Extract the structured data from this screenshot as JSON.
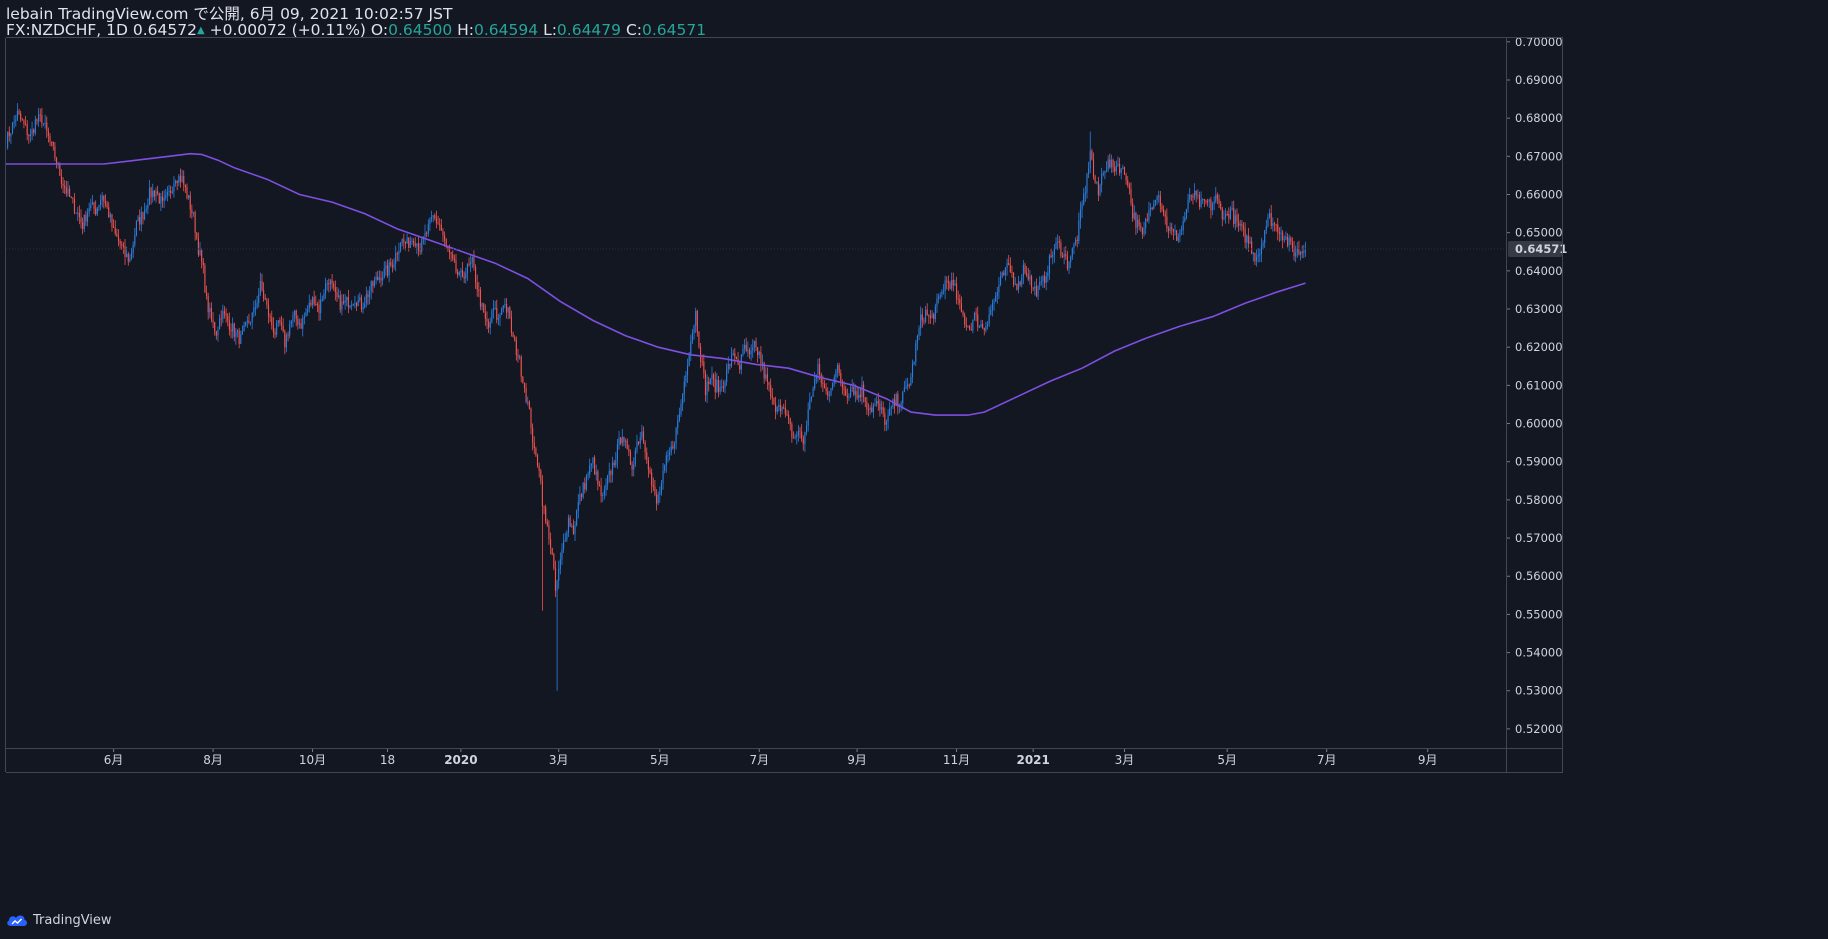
{
  "header": {
    "publisher_line": "lebain TradingView.com で公開, 6月 09, 2021 10:02:57 JST",
    "symbol": "FX:NZDCHF, 1D",
    "last": "0.64572",
    "change": "+0.00072 (+0.11%)",
    "o_label": "O:",
    "o_value": "0.64500",
    "h_label": "H:",
    "h_value": "0.64594",
    "l_label": "L:",
    "l_value": "0.64479",
    "c_label": "C:",
    "c_value": "0.64571"
  },
  "brand": {
    "name": "TradingView",
    "icon": "tradingview-cloud-icon"
  },
  "colors": {
    "background": "#131722",
    "up": "#2a7fe0",
    "down": "#ef5350",
    "ma": "#7e4fe0",
    "text": "#d1d4dc"
  },
  "chart_data": {
    "type": "candlestick",
    "symbol": "FX:NZDCHF",
    "interval": "1D",
    "ylim": [
      0.515,
      0.701
    ],
    "y_ticks": [
      "0.70000",
      "0.69000",
      "0.68000",
      "0.67000",
      "0.66000",
      "0.65000",
      "0.64000",
      "0.63000",
      "0.62000",
      "0.61000",
      "0.60000",
      "0.59000",
      "0.58000",
      "0.57000",
      "0.56000",
      "0.55000",
      "0.54000",
      "0.53000",
      "0.52000"
    ],
    "current_price_label": "0.64571",
    "current_price": 0.64571,
    "x_labels": [
      "6月",
      "8月",
      "10月",
      "18",
      "2020",
      "3月",
      "5月",
      "7月",
      "9月",
      "11月",
      "2021",
      "3月",
      "5月",
      "7月",
      "9月"
    ],
    "x_label_days": [
      66,
      127,
      188,
      234,
      279,
      339,
      401,
      462,
      522,
      583,
      630,
      686,
      749,
      810,
      872
    ],
    "price_day_range": [
      0,
      797
    ],
    "axis_day_range": [
      0,
      920
    ],
    "price_path": [
      [
        0,
        0.674
      ],
      [
        3,
        0.677
      ],
      [
        7,
        0.681
      ],
      [
        11,
        0.678
      ],
      [
        15,
        0.675
      ],
      [
        18,
        0.679
      ],
      [
        22,
        0.68
      ],
      [
        25,
        0.676
      ],
      [
        30,
        0.67
      ],
      [
        34,
        0.664
      ],
      [
        38,
        0.66
      ],
      [
        43,
        0.656
      ],
      [
        47,
        0.652
      ],
      [
        51,
        0.657
      ],
      [
        55,
        0.656
      ],
      [
        59,
        0.66
      ],
      [
        63,
        0.655
      ],
      [
        66,
        0.65
      ],
      [
        70,
        0.647
      ],
      [
        73,
        0.644
      ],
      [
        76,
        0.643
      ],
      [
        80,
        0.652
      ],
      [
        84,
        0.655
      ],
      [
        88,
        0.66
      ],
      [
        92,
        0.661
      ],
      [
        96,
        0.657
      ],
      [
        100,
        0.66
      ],
      [
        104,
        0.665
      ],
      [
        108,
        0.664
      ],
      [
        111,
        0.66
      ],
      [
        115,
        0.654
      ],
      [
        118,
        0.646
      ],
      [
        121,
        0.64
      ],
      [
        123,
        0.632
      ],
      [
        126,
        0.627
      ],
      [
        129,
        0.624
      ],
      [
        132,
        0.629
      ],
      [
        136,
        0.627
      ],
      [
        140,
        0.624
      ],
      [
        144,
        0.622
      ],
      [
        148,
        0.626
      ],
      [
        152,
        0.629
      ],
      [
        156,
        0.636
      ],
      [
        159,
        0.632
      ],
      [
        162,
        0.627
      ],
      [
        165,
        0.624
      ],
      [
        168,
        0.626
      ],
      [
        171,
        0.621
      ],
      [
        174,
        0.626
      ],
      [
        177,
        0.628
      ],
      [
        181,
        0.626
      ],
      [
        185,
        0.63
      ],
      [
        189,
        0.633
      ],
      [
        192,
        0.63
      ],
      [
        195,
        0.635
      ],
      [
        198,
        0.638
      ],
      [
        202,
        0.633
      ],
      [
        206,
        0.631
      ],
      [
        210,
        0.632
      ],
      [
        214,
        0.633
      ],
      [
        218,
        0.631
      ],
      [
        222,
        0.634
      ],
      [
        226,
        0.637
      ],
      [
        230,
        0.639
      ],
      [
        234,
        0.64
      ],
      [
        238,
        0.643
      ],
      [
        242,
        0.648
      ],
      [
        246,
        0.647
      ],
      [
        250,
        0.649
      ],
      [
        254,
        0.646
      ],
      [
        258,
        0.65
      ],
      [
        262,
        0.654
      ],
      [
        266,
        0.652
      ],
      [
        270,
        0.646
      ],
      [
        274,
        0.642
      ],
      [
        278,
        0.638
      ],
      [
        282,
        0.64
      ],
      [
        286,
        0.642
      ],
      [
        290,
        0.634
      ],
      [
        293,
        0.628
      ],
      [
        296,
        0.625
      ],
      [
        299,
        0.63
      ],
      [
        302,
        0.627
      ],
      [
        305,
        0.632
      ],
      [
        308,
        0.629
      ],
      [
        311,
        0.622
      ],
      [
        314,
        0.618
      ],
      [
        317,
        0.612
      ],
      [
        320,
        0.605
      ],
      [
        322,
        0.6
      ],
      [
        324,
        0.592
      ],
      [
        327,
        0.589
      ],
      [
        329,
        0.58
      ],
      [
        331,
        0.574
      ],
      [
        333,
        0.571
      ],
      [
        335,
        0.565
      ],
      [
        337,
        0.556
      ],
      [
        339,
        0.561
      ],
      [
        342,
        0.569
      ],
      [
        345,
        0.575
      ],
      [
        348,
        0.572
      ],
      [
        351,
        0.579
      ],
      [
        354,
        0.583
      ],
      [
        357,
        0.587
      ],
      [
        360,
        0.59
      ],
      [
        363,
        0.584
      ],
      [
        366,
        0.58
      ],
      [
        369,
        0.585
      ],
      [
        372,
        0.589
      ],
      [
        375,
        0.593
      ],
      [
        378,
        0.598
      ],
      [
        381,
        0.592
      ],
      [
        384,
        0.589
      ],
      [
        387,
        0.595
      ],
      [
        390,
        0.598
      ],
      [
        393,
        0.592
      ],
      [
        396,
        0.584
      ],
      [
        399,
        0.579
      ],
      [
        402,
        0.584
      ],
      [
        405,
        0.59
      ],
      [
        408,
        0.593
      ],
      [
        411,
        0.598
      ],
      [
        414,
        0.605
      ],
      [
        417,
        0.614
      ],
      [
        420,
        0.622
      ],
      [
        423,
        0.629
      ],
      [
        426,
        0.618
      ],
      [
        429,
        0.609
      ],
      [
        432,
        0.612
      ],
      [
        435,
        0.61
      ],
      [
        438,
        0.609
      ],
      [
        441,
        0.612
      ],
      [
        444,
        0.616
      ],
      [
        447,
        0.618
      ],
      [
        450,
        0.615
      ],
      [
        453,
        0.62
      ],
      [
        456,
        0.617
      ],
      [
        459,
        0.62
      ],
      [
        462,
        0.618
      ],
      [
        465,
        0.613
      ],
      [
        468,
        0.609
      ],
      [
        471,
        0.604
      ],
      [
        474,
        0.606
      ],
      [
        477,
        0.603
      ],
      [
        480,
        0.6
      ],
      [
        483,
        0.596
      ],
      [
        486,
        0.598
      ],
      [
        489,
        0.595
      ],
      [
        492,
        0.603
      ],
      [
        495,
        0.61
      ],
      [
        498,
        0.614
      ],
      [
        501,
        0.61
      ],
      [
        504,
        0.607
      ],
      [
        507,
        0.612
      ],
      [
        510,
        0.614
      ],
      [
        513,
        0.61
      ],
      [
        516,
        0.608
      ],
      [
        519,
        0.61
      ],
      [
        522,
        0.607
      ],
      [
        525,
        0.609
      ],
      [
        528,
        0.605
      ],
      [
        531,
        0.604
      ],
      [
        534,
        0.605
      ],
      [
        537,
        0.603
      ],
      [
        540,
        0.6
      ],
      [
        543,
        0.604
      ],
      [
        546,
        0.606
      ],
      [
        549,
        0.606
      ],
      [
        552,
        0.609
      ],
      [
        555,
        0.612
      ],
      [
        558,
        0.62
      ],
      [
        561,
        0.627
      ],
      [
        564,
        0.629
      ],
      [
        567,
        0.627
      ],
      [
        570,
        0.63
      ],
      [
        573,
        0.633
      ],
      [
        576,
        0.637
      ],
      [
        579,
        0.637
      ],
      [
        582,
        0.635
      ],
      [
        585,
        0.63
      ],
      [
        588,
        0.627
      ],
      [
        591,
        0.625
      ],
      [
        594,
        0.628
      ],
      [
        597,
        0.626
      ],
      [
        600,
        0.625
      ],
      [
        603,
        0.629
      ],
      [
        606,
        0.632
      ],
      [
        609,
        0.636
      ],
      [
        612,
        0.639
      ],
      [
        615,
        0.641
      ],
      [
        618,
        0.638
      ],
      [
        621,
        0.636
      ],
      [
        624,
        0.641
      ],
      [
        627,
        0.639
      ],
      [
        630,
        0.635
      ],
      [
        633,
        0.635
      ],
      [
        636,
        0.637
      ],
      [
        639,
        0.641
      ],
      [
        642,
        0.645
      ],
      [
        645,
        0.647
      ],
      [
        648,
        0.645
      ],
      [
        651,
        0.642
      ],
      [
        654,
        0.645
      ],
      [
        657,
        0.649
      ],
      [
        660,
        0.657
      ],
      [
        663,
        0.664
      ],
      [
        665,
        0.672
      ],
      [
        667,
        0.665
      ],
      [
        670,
        0.66
      ],
      [
        673,
        0.667
      ],
      [
        676,
        0.668
      ],
      [
        679,
        0.667
      ],
      [
        682,
        0.668
      ],
      [
        685,
        0.666
      ],
      [
        688,
        0.664
      ],
      [
        691,
        0.655
      ],
      [
        694,
        0.652
      ],
      [
        697,
        0.649
      ],
      [
        700,
        0.654
      ],
      [
        703,
        0.658
      ],
      [
        706,
        0.661
      ],
      [
        709,
        0.657
      ],
      [
        712,
        0.652
      ],
      [
        715,
        0.65
      ],
      [
        718,
        0.649
      ],
      [
        721,
        0.651
      ],
      [
        724,
        0.656
      ],
      [
        727,
        0.66
      ],
      [
        730,
        0.659
      ],
      [
        733,
        0.657
      ],
      [
        736,
        0.658
      ],
      [
        739,
        0.657
      ],
      [
        742,
        0.659
      ],
      [
        745,
        0.656
      ],
      [
        748,
        0.654
      ],
      [
        751,
        0.656
      ],
      [
        754,
        0.653
      ],
      [
        757,
        0.651
      ],
      [
        760,
        0.649
      ],
      [
        763,
        0.647
      ],
      [
        766,
        0.644
      ],
      [
        769,
        0.645
      ],
      [
        772,
        0.651
      ],
      [
        775,
        0.654
      ],
      [
        778,
        0.652
      ],
      [
        781,
        0.651
      ],
      [
        784,
        0.649
      ],
      [
        787,
        0.647
      ],
      [
        790,
        0.645
      ],
      [
        793,
        0.645
      ],
      [
        797,
        0.6457
      ]
    ],
    "ma_path": [
      [
        0,
        0.668
      ],
      [
        30,
        0.668
      ],
      [
        60,
        0.668
      ],
      [
        80,
        0.669
      ],
      [
        100,
        0.67
      ],
      [
        113,
        0.6707
      ],
      [
        120,
        0.6705
      ],
      [
        130,
        0.669
      ],
      [
        140,
        0.667
      ],
      [
        160,
        0.664
      ],
      [
        180,
        0.66
      ],
      [
        200,
        0.658
      ],
      [
        220,
        0.655
      ],
      [
        240,
        0.651
      ],
      [
        260,
        0.648
      ],
      [
        280,
        0.645
      ],
      [
        300,
        0.642
      ],
      [
        320,
        0.638
      ],
      [
        340,
        0.632
      ],
      [
        360,
        0.627
      ],
      [
        380,
        0.623
      ],
      [
        400,
        0.62
      ],
      [
        420,
        0.618
      ],
      [
        440,
        0.617
      ],
      [
        460,
        0.6155
      ],
      [
        480,
        0.6145
      ],
      [
        500,
        0.612
      ],
      [
        520,
        0.61
      ],
      [
        540,
        0.6065
      ],
      [
        555,
        0.603
      ],
      [
        570,
        0.6022
      ],
      [
        590,
        0.6022
      ],
      [
        600,
        0.603
      ],
      [
        620,
        0.607
      ],
      [
        640,
        0.611
      ],
      [
        660,
        0.6145
      ],
      [
        680,
        0.619
      ],
      [
        700,
        0.6225
      ],
      [
        720,
        0.6255
      ],
      [
        740,
        0.628
      ],
      [
        760,
        0.6315
      ],
      [
        780,
        0.6345
      ],
      [
        797,
        0.6368
      ]
    ]
  }
}
